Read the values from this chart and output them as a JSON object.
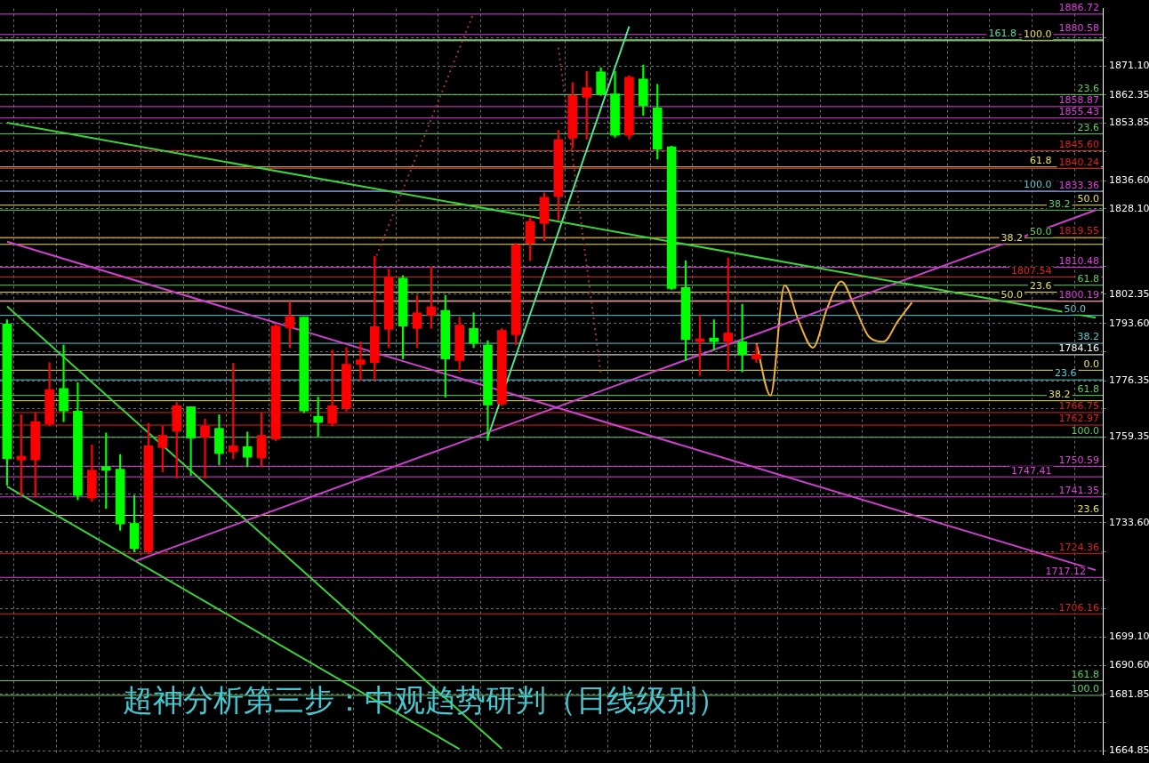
{
  "chart_data": {
    "type": "candlestick",
    "title": "超神分析第三步：中观趋势研判（日线级别）",
    "categories": [
      null,
      null,
      null,
      null,
      null,
      null,
      null,
      null,
      null,
      null,
      null,
      null,
      null,
      null,
      null,
      null,
      null,
      null,
      null,
      null,
      null,
      null,
      null,
      null,
      null,
      null,
      null,
      null,
      null,
      null,
      null,
      null,
      null,
      null,
      null,
      null,
      null,
      null,
      null,
      null,
      null,
      null,
      null,
      null,
      null,
      null,
      null,
      null,
      null,
      null,
      null,
      null,
      null,
      null,
      null,
      null,
      null,
      null,
      null,
      null,
      null,
      null,
      null,
      null,
      null,
      null,
      null,
      null,
      null,
      null,
      null,
      null,
      null,
      null,
      null,
      null,
      null,
      null
    ],
    "ohlc": [
      [
        1793.4,
        1794.7,
        1744.9,
        1752.8
      ],
      [
        1752.5,
        1766.1,
        1741.8,
        1753.6
      ],
      [
        1752.5,
        1766.7,
        1741.3,
        1764.0
      ],
      [
        1763.3,
        1781.8,
        1762.7,
        1773.7
      ],
      [
        1774.0,
        1787.1,
        1764.0,
        1767.2
      ],
      [
        1767.2,
        1775.8,
        1740.5,
        1741.8
      ],
      [
        1741.0,
        1757.0,
        1740.0,
        1749.4
      ],
      [
        1750.4,
        1760.6,
        1737.9,
        1749.4
      ],
      [
        1749.7,
        1754.1,
        1731.3,
        1733.2
      ],
      [
        1733.4,
        1741.8,
        1724.8,
        1725.8
      ],
      [
        1725.1,
        1763.5,
        1724.3,
        1756.7
      ],
      [
        1756.2,
        1762.7,
        1748.9,
        1759.9
      ],
      [
        1761.2,
        1769.8,
        1747.0,
        1768.8
      ],
      [
        1768.5,
        1768.5,
        1747.8,
        1759.1
      ],
      [
        1759.3,
        1764.8,
        1747.0,
        1762.7
      ],
      [
        1762.0,
        1766.1,
        1751.0,
        1754.4
      ],
      [
        1754.9,
        1781.6,
        1752.8,
        1756.7
      ],
      [
        1756.5,
        1760.9,
        1750.4,
        1753.3
      ],
      [
        1753.1,
        1766.7,
        1750.4,
        1759.9
      ],
      [
        1758.8,
        1793.4,
        1758.3,
        1792.8
      ],
      [
        1792.3,
        1800.2,
        1786.3,
        1795.7
      ],
      [
        1795.5,
        1795.5,
        1766.7,
        1767.2
      ],
      [
        1765.6,
        1771.4,
        1759.6,
        1763.8
      ],
      [
        1763.5,
        1785.5,
        1762.7,
        1768.8
      ],
      [
        1768.0,
        1786.3,
        1767.2,
        1781.3
      ],
      [
        1781.3,
        1788.1,
        1776.4,
        1782.6
      ],
      [
        1781.8,
        1813.8,
        1776.6,
        1792.6
      ],
      [
        1791.8,
        1809.9,
        1786.3,
        1807.5
      ],
      [
        1807.2,
        1808.0,
        1782.9,
        1792.8
      ],
      [
        1792.1,
        1802.0,
        1786.3,
        1796.8
      ],
      [
        1796.0,
        1810.6,
        1792.1,
        1798.6
      ],
      [
        1797.5,
        1802.0,
        1771.4,
        1782.9
      ],
      [
        1782.4,
        1795.5,
        1779.0,
        1793.1
      ],
      [
        1792.1,
        1796.8,
        1786.3,
        1787.6
      ],
      [
        1787.1,
        1788.4,
        1758.3,
        1769.0
      ],
      [
        1769.3,
        1792.1,
        1768.8,
        1791.5
      ],
      [
        1790.2,
        1817.7,
        1787.1,
        1817.2
      ],
      [
        1817.7,
        1825.6,
        1812.5,
        1824.3
      ],
      [
        1823.7,
        1832.9,
        1818.5,
        1831.6
      ],
      [
        1831.8,
        1851.7,
        1824.8,
        1848.9
      ],
      [
        1849.4,
        1866.1,
        1846.5,
        1862.2
      ],
      [
        1861.7,
        1869.5,
        1849.1,
        1864.6
      ],
      [
        1869.3,
        1870.6,
        1862.2,
        1862.7
      ],
      [
        1862.7,
        1869.5,
        1849.6,
        1850.2
      ],
      [
        1850.2,
        1868.2,
        1849.1,
        1867.7
      ],
      [
        1867.2,
        1871.4,
        1856.2,
        1859.1
      ],
      [
        1858.5,
        1865.6,
        1843.1,
        1846.0
      ],
      [
        1846.8,
        1847.0,
        1803.8,
        1804.1
      ],
      [
        1804.4,
        1812.5,
        1782.4,
        1788.7
      ],
      [
        1788.1,
        1796.0,
        1777.9,
        1788.9
      ],
      [
        1789.2,
        1794.7,
        1785.5,
        1788.1
      ],
      [
        1788.1,
        1813.3,
        1779.2,
        1790.7
      ],
      [
        1788.1,
        1799.4,
        1779.0,
        1784.2
      ],
      [
        1782.9,
        1787.1,
        1781.8,
        1784.2
      ],
      null,
      null,
      null,
      null,
      null,
      null,
      null,
      null,
      null,
      null,
      null,
      null,
      null,
      null,
      null,
      null,
      null,
      null,
      null,
      null,
      null,
      null,
      null,
      null
    ],
    "colors": [
      "#00ff00",
      "#ff0000",
      "#ff0000",
      "#ff0000",
      "#00ff00",
      "#00ff00",
      "#ff0000",
      "#00ff00",
      "#00ff00",
      "#00ff00",
      "#ff0000",
      "#ff0000",
      "#ff0000",
      "#00ff00",
      "#ff0000",
      "#00ff00",
      "#ff0000",
      "#00ff00",
      "#ff0000",
      "#ff0000",
      "#ff0000",
      "#00ff00",
      "#00ff00",
      "#ff0000",
      "#ff0000",
      "#ff0000",
      "#ff0000",
      "#ff0000",
      "#00ff00",
      "#ff0000",
      "#ff0000",
      "#00ff00",
      "#ff0000",
      "#00ff00",
      "#00ff00",
      "#ff0000",
      "#ff0000",
      "#ff0000",
      "#ff0000",
      "#ff0000",
      "#ff0000",
      "#ff0000",
      "#00ff00",
      "#00ff00",
      "#ff0000",
      "#00ff00",
      "#00ff00",
      "#00ff00",
      "#00ff00",
      "#ff0000",
      "#00ff00",
      "#ff0000",
      "#00ff00",
      "#ff0000",
      null,
      null,
      null,
      null,
      null,
      null,
      null,
      null,
      null,
      null,
      null,
      null,
      null,
      null,
      null,
      null,
      null,
      null,
      null,
      null,
      null,
      null,
      null,
      null
    ],
    "series": [
      {
        "type": "line",
        "color": "#3cd23c",
        "values": [
          1854.0,
          null,
          null,
          null,
          null,
          null,
          null,
          null,
          null,
          null,
          null,
          null,
          null,
          null,
          null,
          null,
          null,
          null,
          null,
          null,
          null,
          null,
          null,
          null,
          null,
          null,
          null,
          null,
          null,
          null,
          null,
          null,
          null,
          null,
          null,
          null,
          null,
          null,
          null,
          null,
          null,
          null,
          null,
          null,
          null,
          null,
          null,
          null,
          null,
          null,
          null,
          null,
          null,
          null,
          null,
          null,
          null,
          null,
          null,
          null,
          null,
          null,
          null,
          null,
          null,
          null,
          null,
          null,
          null,
          null,
          null,
          null,
          null,
          null,
          null,
          null,
          null,
          1795.3
        ]
      },
      {
        "type": "line",
        "color": "#d040d0",
        "values": [
          1818.2,
          null,
          null,
          null,
          null,
          null,
          null,
          null,
          null,
          null,
          null,
          null,
          null,
          null,
          null,
          null,
          null,
          null,
          null,
          null,
          null,
          null,
          null,
          null,
          null,
          null,
          null,
          null,
          null,
          null,
          null,
          null,
          null,
          null,
          null,
          null,
          null,
          null,
          null,
          null,
          null,
          null,
          null,
          null,
          null,
          null,
          null,
          null,
          null,
          null,
          null,
          null,
          null,
          null,
          null,
          null,
          null,
          null,
          null,
          null,
          null,
          null,
          null,
          null,
          null,
          null,
          null,
          null,
          null,
          null,
          null,
          null,
          null,
          null,
          null,
          null,
          null,
          1719.3
        ]
      },
      {
        "type": "line",
        "color": "#d040d0",
        "values": [
          null,
          null,
          null,
          null,
          null,
          null,
          null,
          null,
          null,
          1721.9,
          null,
          null,
          null,
          null,
          null,
          null,
          null,
          null,
          null,
          null,
          null,
          null,
          null,
          null,
          null,
          null,
          null,
          null,
          null,
          null,
          null,
          null,
          null,
          null,
          null,
          null,
          null,
          null,
          null,
          null,
          null,
          null,
          null,
          null,
          null,
          null,
          null,
          null,
          null,
          null,
          null,
          null,
          null,
          null,
          null,
          null,
          null,
          null,
          null,
          null,
          null,
          null,
          null,
          null,
          null,
          null,
          null,
          null,
          null,
          null,
          null,
          null,
          null,
          null,
          null,
          null,
          null,
          1827.7
        ]
      },
      {
        "type": "line",
        "color": "#50e890",
        "values": [
          null,
          null,
          null,
          null,
          null,
          null,
          null,
          null,
          null,
          null,
          null,
          null,
          null,
          null,
          null,
          null,
          null,
          null,
          null,
          null,
          null,
          null,
          null,
          null,
          null,
          null,
          null,
          null,
          null,
          null,
          null,
          null,
          null,
          null,
          1759.3,
          null,
          null,
          null,
          null,
          null,
          null,
          null,
          null,
          null,
          1883.0,
          null,
          null,
          null,
          null,
          null,
          null,
          null,
          null,
          null,
          null,
          null,
          null,
          null,
          null,
          null,
          null,
          null,
          null,
          null,
          null,
          null,
          null,
          null,
          null,
          null,
          null,
          null,
          null,
          null,
          null,
          null,
          null,
          null
        ]
      },
      {
        "type": "line",
        "color": "#3cd23c",
        "values": [
          1798.7,
          null,
          null,
          null,
          null,
          null,
          null,
          null,
          null,
          null,
          null,
          null,
          null,
          null,
          null,
          null,
          null,
          null,
          null,
          null,
          null,
          null,
          null,
          null,
          null,
          null,
          null,
          null,
          null,
          null,
          null,
          null,
          null,
          null,
          null,
          1665.5,
          null,
          null,
          null,
          null,
          null,
          null,
          null,
          null,
          null,
          null,
          null,
          null,
          null,
          null,
          null,
          null,
          null,
          null,
          null,
          null,
          null,
          null,
          null,
          null,
          null,
          null,
          null,
          null,
          null,
          null,
          null,
          null,
          null,
          null,
          null,
          null,
          null,
          null,
          null,
          null,
          null,
          null
        ]
      },
      {
        "type": "line",
        "color": "#3cd23c",
        "values": [
          1744.5,
          null,
          null,
          null,
          null,
          null,
          null,
          null,
          null,
          null,
          null,
          null,
          null,
          null,
          null,
          null,
          null,
          null,
          null,
          null,
          null,
          null,
          null,
          null,
          null,
          null,
          null,
          null,
          null,
          null,
          null,
          null,
          1665.4,
          null,
          null,
          null,
          null,
          null,
          null,
          null,
          null,
          null,
          null,
          null,
          null,
          null,
          null,
          null,
          null,
          null,
          null,
          null,
          null,
          null,
          null,
          null,
          null,
          null,
          null,
          null,
          null,
          null,
          null,
          null,
          null,
          null,
          null,
          null,
          null,
          null,
          null,
          null,
          null,
          null,
          null,
          null,
          null,
          null
        ]
      },
      {
        "type": "line",
        "color": "#a03828",
        "line_style": "dotted",
        "values": [
          null,
          null,
          null,
          null,
          null,
          null,
          null,
          null,
          null,
          null,
          null,
          null,
          null,
          null,
          null,
          null,
          null,
          null,
          null,
          null,
          null,
          null,
          null,
          null,
          null,
          null,
          1812.5,
          null,
          null,
          null,
          null,
          null,
          null,
          1887.1,
          null,
          null,
          null,
          null,
          null,
          null,
          null,
          null,
          null,
          null,
          null,
          null,
          null,
          null,
          null,
          null,
          null,
          null,
          null,
          null,
          null,
          null,
          null,
          null,
          null,
          null,
          null,
          null,
          null,
          null,
          null,
          null,
          null,
          null,
          null,
          null,
          null,
          null,
          null,
          null,
          null,
          null,
          null,
          null
        ]
      },
      {
        "type": "line",
        "color": "#a03828",
        "line_style": "dotted",
        "values": [
          null,
          null,
          null,
          null,
          null,
          null,
          null,
          null,
          null,
          null,
          null,
          null,
          null,
          null,
          null,
          null,
          null,
          null,
          null,
          null,
          null,
          null,
          null,
          null,
          null,
          null,
          null,
          null,
          null,
          null,
          null,
          null,
          null,
          null,
          null,
          null,
          null,
          null,
          null,
          1876.6,
          null,
          null,
          1778.4,
          null,
          null,
          null,
          null,
          null,
          null,
          null,
          null,
          null,
          null,
          null,
          null,
          null,
          null,
          null,
          null,
          null,
          null,
          null,
          null,
          null,
          null,
          null,
          null,
          null,
          null,
          null,
          null,
          null,
          null,
          null,
          null,
          null,
          null,
          null
        ]
      },
      {
        "type": "line",
        "color": "#f0b030",
        "values": [
          null,
          null,
          null,
          null,
          null,
          null,
          null,
          null,
          null,
          null,
          null,
          null,
          null,
          null,
          null,
          null,
          null,
          null,
          null,
          null,
          null,
          null,
          null,
          null,
          null,
          null,
          null,
          null,
          null,
          null,
          null,
          null,
          null,
          null,
          null,
          null,
          null,
          null,
          null,
          null,
          null,
          null,
          null,
          null,
          null,
          null,
          null,
          null,
          null,
          null,
          null,
          null,
          null,
          1787.6,
          1771.9,
          1805.1,
          1794.2,
          1786.3,
          1798.1,
          1806.2,
          1798.1,
          1789.4,
          1788.1,
          1794.2,
          1799.9,
          null,
          null,
          null,
          null,
          null,
          null,
          null,
          null,
          null,
          null,
          null,
          null,
          null
        ]
      }
    ],
    "ref_lines": [
      {
        "axis": "y",
        "value": 1886.72,
        "label": "1886.72",
        "color": "#e040e0"
      },
      {
        "axis": "y",
        "value": 1880.58,
        "label": "1880.58",
        "color": "#e040e0"
      },
      {
        "axis": "y",
        "value": 1858.87,
        "label": "1858.87",
        "color": "#e040e0"
      },
      {
        "axis": "y",
        "value": 1855.43,
        "label": "1855.43",
        "color": "#e040e0"
      },
      {
        "axis": "y",
        "value": 1845.6,
        "label": "1845.60",
        "color": "#e02020"
      },
      {
        "axis": "y",
        "value": 1840.24,
        "label": "1840.24",
        "color": "#e02020"
      },
      {
        "axis": "y",
        "value": 1833.36,
        "label": "1833.36",
        "color": "#e040e0"
      },
      {
        "axis": "y",
        "value": 1819.55,
        "label": "1819.55",
        "color": "#e02020"
      },
      {
        "axis": "y",
        "value": 1810.48,
        "label": "1810.48",
        "color": "#e040e0"
      },
      {
        "axis": "y",
        "value": 1807.54,
        "label": "1807.54",
        "color": "#e02020"
      },
      {
        "axis": "y",
        "value": 1800.19,
        "label": "1800.19",
        "color": "#e040e0"
      },
      {
        "axis": "y",
        "value": 1784.16,
        "label": "1784.16",
        "color": "#ffffff"
      },
      {
        "axis": "y",
        "value": 1766.75,
        "label": "1766.75",
        "color": "#e02020"
      },
      {
        "axis": "y",
        "value": 1762.97,
        "label": "1762.97",
        "color": "#e02020"
      },
      {
        "axis": "y",
        "value": 1750.59,
        "label": "1750.59",
        "color": "#e040e0"
      },
      {
        "axis": "y",
        "value": 1747.41,
        "label": "1747.41",
        "color": "#e040e0"
      },
      {
        "axis": "y",
        "value": 1741.35,
        "label": "1741.35",
        "color": "#e040e0"
      },
      {
        "axis": "y",
        "value": 1724.36,
        "label": "1724.36",
        "color": "#e02020"
      },
      {
        "axis": "y",
        "value": 1717.12,
        "label": "1717.12",
        "color": "#e040e0"
      },
      {
        "axis": "y",
        "value": 1706.16,
        "label": "1706.16",
        "color": "#e02020"
      },
      {
        "axis": "y",
        "value": 1878.7,
        "color": "#e8e060"
      },
      {
        "axis": "y",
        "value": 1879.0,
        "color": "#60d8a0"
      },
      {
        "axis": "y",
        "value": 1862.5,
        "color": "#60d060"
      },
      {
        "axis": "y",
        "value": 1850.7,
        "color": "#60d060"
      },
      {
        "axis": "y",
        "value": 1840.7,
        "color": "#e8e060"
      },
      {
        "axis": "y",
        "value": 1833.4,
        "color": "#60c8d0"
      },
      {
        "axis": "y",
        "value": 1829.2,
        "color": "#e8e060"
      },
      {
        "axis": "y",
        "value": 1827.7,
        "color": "#60d060"
      },
      {
        "axis": "y",
        "value": 1819.3,
        "color": "#60d060"
      },
      {
        "axis": "y",
        "value": 1817.4,
        "color": "#e8e060"
      },
      {
        "axis": "y",
        "value": 1805.1,
        "color": "#60d060"
      },
      {
        "axis": "y",
        "value": 1803.0,
        "color": "#e8e060"
      },
      {
        "axis": "y",
        "value": 1800.4,
        "color": "#e8e060"
      },
      {
        "axis": "y",
        "value": 1796.0,
        "color": "#60c8d0"
      },
      {
        "axis": "y",
        "value": 1787.6,
        "color": "#60c8d0"
      },
      {
        "axis": "y",
        "value": 1779.5,
        "color": "#e8e060"
      },
      {
        "axis": "y",
        "value": 1776.6,
        "color": "#60c8d0"
      },
      {
        "axis": "y",
        "value": 1771.9,
        "color": "#60d060"
      },
      {
        "axis": "y",
        "value": 1770.3,
        "color": "#e8e060"
      },
      {
        "axis": "y",
        "value": 1759.3,
        "color": "#60d060"
      },
      {
        "axis": "y",
        "value": 1735.8,
        "color": "#e8e060"
      },
      {
        "axis": "y",
        "value": 1686.0,
        "color": "#60d060"
      },
      {
        "axis": "y",
        "value": 1681.6,
        "color": "#60d060"
      }
    ],
    "annotations": [
      {
        "text": "100.0",
        "y": 1878.7
      },
      {
        "text": "161.8",
        "y": 1879.0
      },
      {
        "text": "23.6",
        "y": 1862.5
      },
      {
        "text": "23.6",
        "y": 1850.7
      },
      {
        "text": "61.8",
        "y": 1840.7
      },
      {
        "text": "100.0",
        "y": 1833.4
      },
      {
        "text": "50.0",
        "y": 1829.2
      },
      {
        "text": "38.2",
        "y": 1827.7
      },
      {
        "text": "50.0",
        "y": 1819.3
      },
      {
        "text": "38.2",
        "y": 1817.4
      },
      {
        "text": "61.8",
        "y": 1805.1
      },
      {
        "text": "23.6",
        "y": 1803.0
      },
      {
        "text": "50.0",
        "y": 1800.4
      },
      {
        "text": "50.0",
        "y": 1796.0
      },
      {
        "text": "38.2",
        "y": 1787.6
      },
      {
        "text": "0.0",
        "y": 1779.5
      },
      {
        "text": "23.6",
        "y": 1776.6
      },
      {
        "text": "61.8",
        "y": 1771.9
      },
      {
        "text": "38.2",
        "y": 1770.3
      },
      {
        "text": "100.0",
        "y": 1759.3
      },
      {
        "text": "23.6",
        "y": 1735.8
      },
      {
        "text": "161.8",
        "y": 1686.0
      },
      {
        "text": "100.0",
        "y": 1681.6
      }
    ],
    "ylim": [
      1663.8,
      1888.4
    ],
    "yticks": [
      {
        "value": 1879.6,
        "label": null
      },
      {
        "value": 1871.1,
        "label": "1871.10"
      },
      {
        "value": 1862.35,
        "label": "1862.35"
      },
      {
        "value": 1853.85,
        "label": "1853.85"
      },
      {
        "value": 1845.35,
        "label": null
      },
      {
        "value": 1836.6,
        "label": "1836.60"
      },
      {
        "value": 1828.1,
        "label": "1828.10"
      },
      {
        "value": 1819.35,
        "label": null
      },
      {
        "value": 1810.85,
        "label": null
      },
      {
        "value": 1802.35,
        "label": "1802.35"
      },
      {
        "value": 1793.6,
        "label": "1793.60"
      },
      {
        "value": 1785.1,
        "label": null
      },
      {
        "value": 1776.35,
        "label": "1776.35"
      },
      {
        "value": 1767.85,
        "label": null
      },
      {
        "value": 1759.35,
        "label": "1759.35"
      },
      {
        "value": 1750.6,
        "label": null
      },
      {
        "value": 1742.1,
        "label": null
      },
      {
        "value": 1733.6,
        "label": "1733.60"
      },
      {
        "value": 1724.85,
        "label": null
      },
      {
        "value": 1716.35,
        "label": null
      },
      {
        "value": 1707.6,
        "label": null
      },
      {
        "value": 1699.1,
        "label": "1699.10"
      },
      {
        "value": 1690.6,
        "label": "1690.60"
      },
      {
        "value": 1681.85,
        "label": "1681.85"
      },
      {
        "value": 1673.35,
        "label": null
      },
      {
        "value": 1664.85,
        "label": "1664.85"
      }
    ],
    "grid": true,
    "legend": false,
    "tick_labels": "y"
  }
}
